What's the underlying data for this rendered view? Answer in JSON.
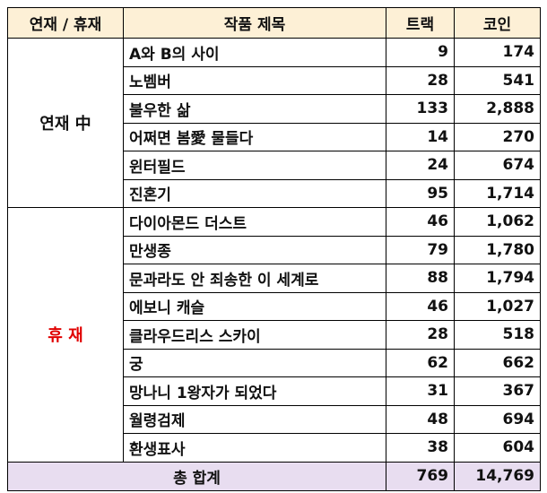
{
  "table": {
    "header": [
      "연재 / 휴재",
      "작품 제목",
      "트랙",
      "코인"
    ],
    "groups": [
      {
        "label": "연재 中",
        "rows": [
          [
            "A와 B의 사이",
            "9",
            "174"
          ],
          [
            "노벰버",
            "28",
            "541"
          ],
          [
            "불우한 삶",
            "133",
            "2,888"
          ],
          [
            "어쩌면 봄愛 물들다",
            "14",
            "270"
          ],
          [
            "윈터필드",
            "24",
            "674"
          ],
          [
            "진혼기",
            "95",
            "1,714"
          ]
        ]
      },
      {
        "label": "휴 재",
        "rows": [
          [
            "다이아몬드 더스트",
            "46",
            "1,062"
          ],
          [
            "만생종",
            "79",
            "1,780"
          ],
          [
            "문과라도 안 죄송한 이 세계로",
            "88",
            "1,794"
          ],
          [
            "에보니 캐슬",
            "46",
            "1,027"
          ],
          [
            "클라우드리스 스카이",
            "28",
            "518"
          ],
          [
            "궁",
            "62",
            "662"
          ],
          [
            "망나니 1왕자가 되었다",
            "31",
            "367"
          ],
          [
            "월령검제",
            "48",
            "694"
          ],
          [
            "환생표사",
            "38",
            "604"
          ]
        ]
      }
    ],
    "total": [
      "총 합계",
      "769",
      "14,769"
    ]
  }
}
